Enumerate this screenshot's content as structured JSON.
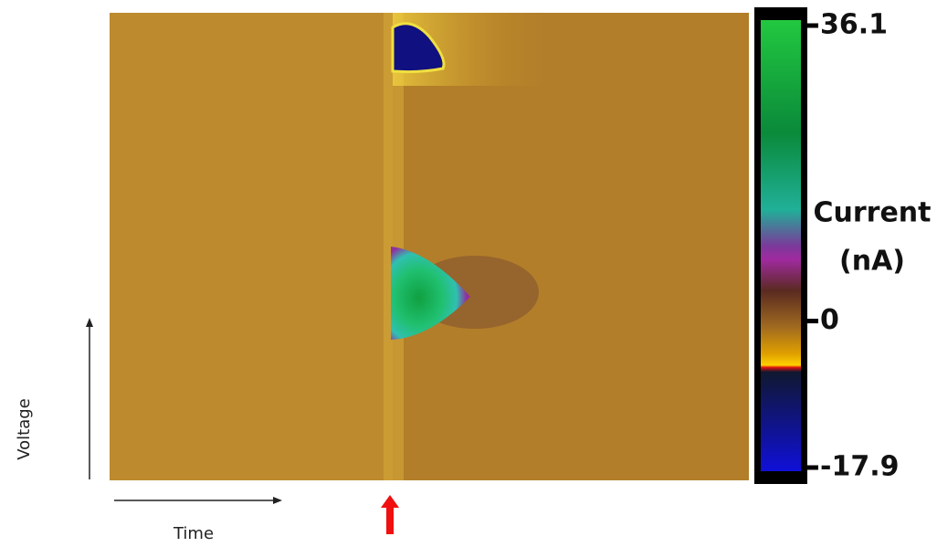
{
  "y_label": "Voltage",
  "x_label": "Time",
  "colorbar": {
    "title": [
      "Current",
      "(nA)"
    ],
    "lim": [
      -17.9,
      36.1
    ],
    "ticks": [
      36.1,
      0,
      -17.9
    ]
  }
}
